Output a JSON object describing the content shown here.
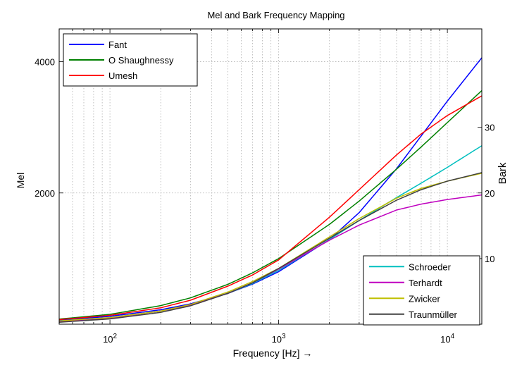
{
  "chart_data": {
    "type": "line",
    "title": "Mel and Bark Frequency Mapping",
    "xlabel": "Frequency [Hz] →",
    "ylabel_left": "Mel",
    "ylabel_right": "Bark",
    "x_scale": "log",
    "xlim": [
      50,
      16000
    ],
    "ylim_left": [
      0,
      4500
    ],
    "ylim_right": [
      0,
      45
    ],
    "grid": "dotted, log x minor grid",
    "x_tick_values": [
      100,
      1000,
      10000
    ],
    "x_tick_labels": [
      {
        "base": "10",
        "exp": "2"
      },
      {
        "base": "10",
        "exp": "3"
      },
      {
        "base": "10",
        "exp": "4"
      }
    ],
    "y_left_ticks": [
      2000,
      4000
    ],
    "y_left_tick_labels": [
      "2000",
      "4000"
    ],
    "y_right_ticks": [
      10,
      20,
      30
    ],
    "y_right_tick_labels": [
      "10",
      "20",
      "30"
    ],
    "legend_mel": {
      "placement": "top-left",
      "entries": [
        {
          "label": "Fant",
          "color": "#0000ff"
        },
        {
          "label": "O Shaughnessy",
          "color": "#008000"
        },
        {
          "label": "Umesh",
          "color": "#ff0000"
        }
      ]
    },
    "legend_bark": {
      "placement": "bottom-right",
      "entries": [
        {
          "label": "Schroeder",
          "color": "#00bfbf"
        },
        {
          "label": "Terhardt",
          "color": "#bf00bf"
        },
        {
          "label": "Zwicker",
          "color": "#bfbf00"
        },
        {
          "label": "Traunmüller",
          "color": "#404040"
        }
      ]
    },
    "series": [
      {
        "key": "fant",
        "axis": "left",
        "color": "#0000ff",
        "x": [
          50,
          100,
          200,
          300,
          500,
          700,
          1000,
          2000,
          3000,
          5000,
          7000,
          10000,
          16000
        ],
        "values": [
          59,
          120,
          220,
          310,
          470,
          610,
          800,
          1290,
          1700,
          2370,
          2870,
          3400,
          4060
        ]
      },
      {
        "key": "oshaughnessy",
        "axis": "left",
        "color": "#008000",
        "x": [
          50,
          100,
          200,
          300,
          500,
          700,
          1000,
          2000,
          3000,
          5000,
          7000,
          10000,
          16000
        ],
        "values": [
          78,
          150,
          283,
          401,
          607,
          782,
          1000,
          1521,
          1876,
          2363,
          2702,
          3073,
          3560
        ]
      },
      {
        "key": "umesh",
        "axis": "left",
        "color": "#ff0000",
        "x": [
          50,
          100,
          200,
          300,
          500,
          700,
          1000,
          2000,
          3000,
          5000,
          7000,
          10000,
          16000
        ],
        "values": [
          70,
          135,
          250,
          365,
          580,
          750,
          980,
          1630,
          2050,
          2580,
          2900,
          3180,
          3480
        ]
      },
      {
        "key": "schroeder",
        "axis": "right",
        "color": "#00bfbf",
        "x": [
          50,
          100,
          200,
          300,
          500,
          700,
          1000,
          2000,
          3000,
          5000,
          7000,
          10000,
          16000
        ],
        "values": [
          0.5,
          1.0,
          2.0,
          2.9,
          4.7,
          6.2,
          8.2,
          12.9,
          15.8,
          19.3,
          21.5,
          23.9,
          27.2
        ]
      },
      {
        "key": "terhardt",
        "axis": "right",
        "color": "#bf00bf",
        "x": [
          50,
          100,
          200,
          300,
          500,
          700,
          1000,
          2000,
          3000,
          5000,
          7000,
          10000,
          16000
        ],
        "values": [
          0.4,
          0.9,
          2.0,
          2.9,
          4.7,
          6.3,
          8.4,
          12.8,
          15.1,
          17.4,
          18.3,
          19.0,
          19.7
        ]
      },
      {
        "key": "zwicker",
        "axis": "right",
        "color": "#bfbf00",
        "x": [
          50,
          100,
          200,
          300,
          500,
          700,
          1000,
          2000,
          3000,
          5000,
          7000,
          10000,
          16000
        ],
        "values": [
          0.5,
          1.0,
          2.0,
          3.0,
          4.9,
          6.5,
          8.5,
          13.3,
          16.1,
          19.2,
          20.7,
          21.8,
          23.0
        ]
      },
      {
        "key": "traunmuller",
        "axis": "right",
        "color": "#404040",
        "x": [
          50,
          100,
          200,
          300,
          500,
          700,
          1000,
          2000,
          3000,
          5000,
          7000,
          10000,
          16000
        ],
        "values": [
          0.3,
          0.8,
          1.8,
          2.8,
          4.7,
          6.3,
          8.5,
          13.1,
          15.8,
          18.9,
          20.5,
          21.8,
          23.1
        ]
      }
    ]
  }
}
